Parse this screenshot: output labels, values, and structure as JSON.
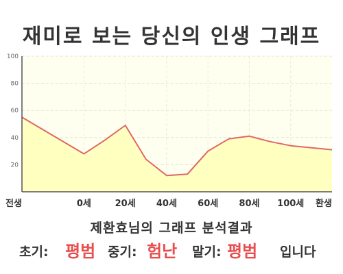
{
  "title": "재미로 보는 당신의 인생 그래프",
  "subtitle": "제환효님의 그래프 분석결과",
  "result": {
    "early_label": "초기:",
    "early_value": "평범",
    "mid_label": "중기:",
    "mid_value": "험난",
    "late_label": "말기:",
    "late_value": "평범",
    "suffix": "입니다"
  },
  "colors": {
    "line": "#e06666",
    "fill": "#ffffc0",
    "plot_bg": "#fffff0",
    "highlight": "#e84e4e"
  },
  "chart_data": {
    "type": "area",
    "title": "재미로 보는 당신의 인생 그래프",
    "xlabel": "",
    "ylabel": "",
    "ylim": [
      0,
      100
    ],
    "yticks": [
      20,
      40,
      60,
      80,
      100
    ],
    "grid": true,
    "legend": "none",
    "xticks": [
      "전생",
      "0세",
      "20세",
      "40세",
      "60세",
      "80세",
      "100세",
      "환생"
    ],
    "x": [
      -30,
      0,
      10,
      20,
      30,
      40,
      50,
      60,
      70,
      80,
      90,
      100,
      120
    ],
    "series": [
      {
        "values": [
          55,
          28,
          38,
          49,
          24,
          12,
          13,
          30,
          39,
          41,
          37,
          34,
          31
        ]
      }
    ]
  }
}
